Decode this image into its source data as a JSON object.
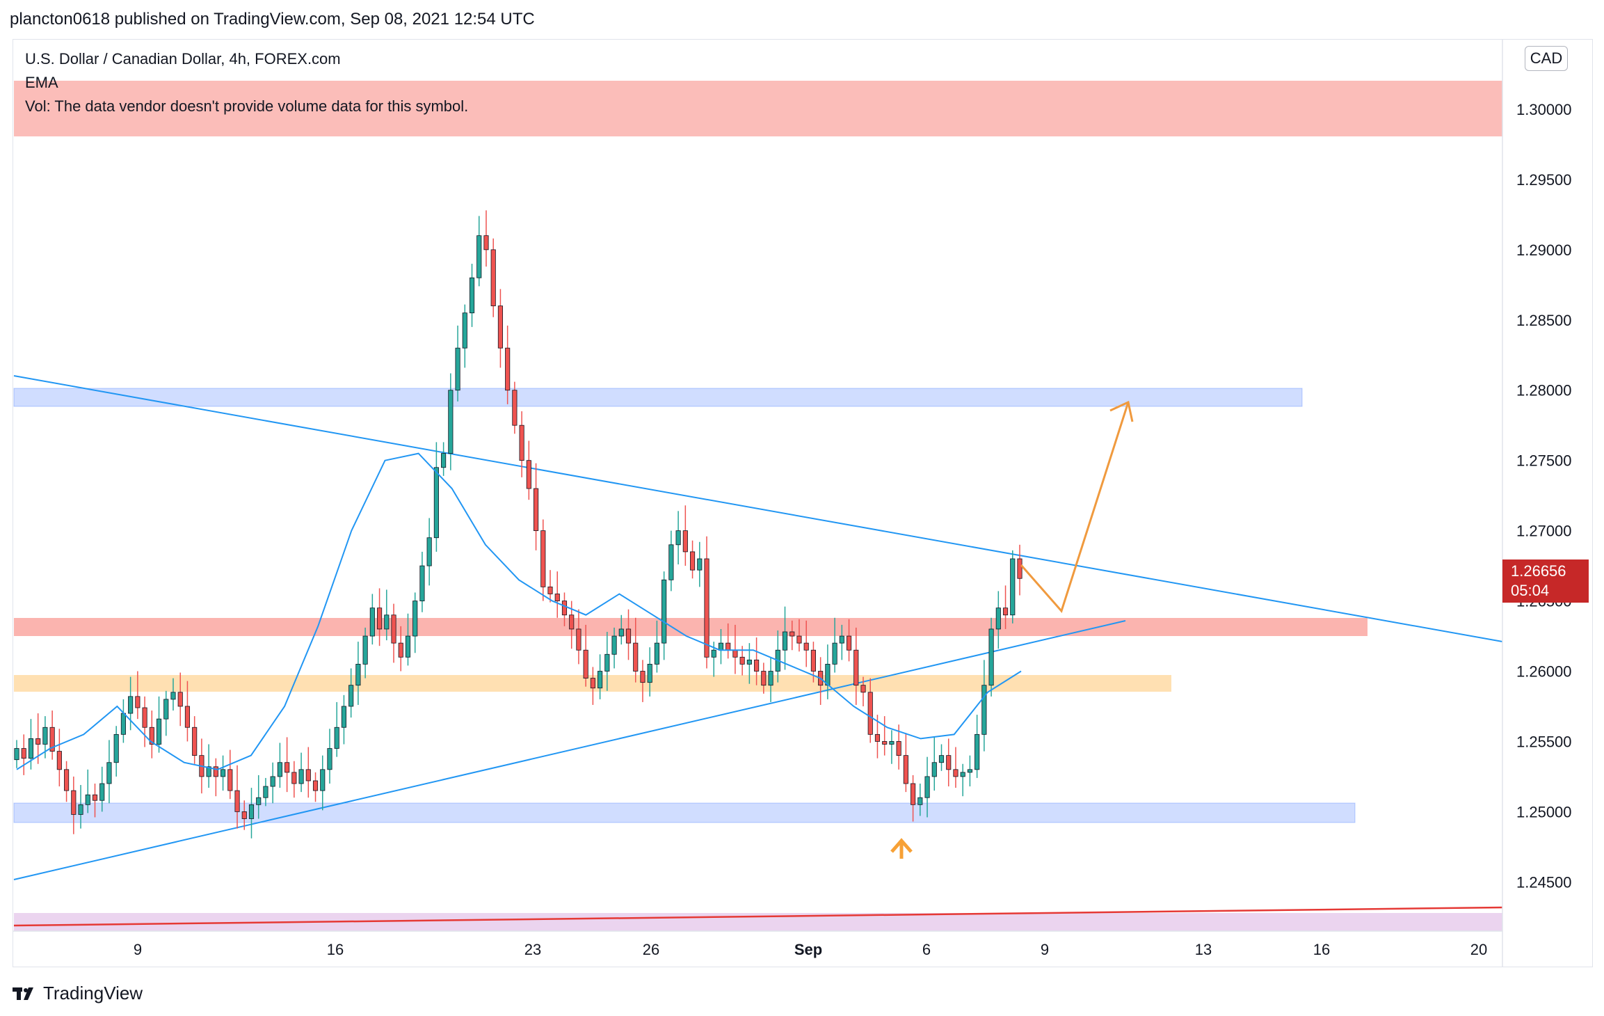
{
  "header": {
    "publisher": "plancton0618 published on TradingView.com, Sep 08, 2021 12:54 UTC"
  },
  "legend": {
    "symbol": "U.S. Dollar / Canadian Dollar, 4h, FOREX.com",
    "ema": "EMA",
    "volume_notice": "Vol: The data vendor doesn't provide volume data for this symbol."
  },
  "currency_badge": "CAD",
  "price_badge": {
    "price": "1.26656",
    "countdown": "05:04"
  },
  "footer": {
    "brand": "TradingView"
  },
  "colors": {
    "up_candle": "#26a69a",
    "down_candle": "#ef5350",
    "ema_line": "#2196f3",
    "trendline": "#2196f3",
    "arrow": "#f7a136",
    "price_badge": "#c62828"
  },
  "chart_data": {
    "type": "candlestick",
    "title": "U.S. Dollar / Canadian Dollar, 4h, FOREX.com",
    "ylim": [
      1.2415,
      1.305
    ],
    "y_ticks": [
      "1.30000",
      "1.29500",
      "1.29000",
      "1.28500",
      "1.28000",
      "1.27500",
      "1.27000",
      "1.26500",
      "1.26000",
      "1.25500",
      "1.25000",
      "1.24500"
    ],
    "x_ticks": [
      "9",
      "16",
      "23",
      "26",
      "Sep",
      "6",
      "9",
      "13",
      "16",
      "20"
    ],
    "grid": false,
    "last_price": 1.26656,
    "close_series": [
      1.2545,
      1.2538,
      1.2552,
      1.2548,
      1.256,
      1.2543,
      1.253,
      1.2515,
      1.2498,
      1.2505,
      1.2512,
      1.2508,
      1.252,
      1.2535,
      1.2555,
      1.257,
      1.2582,
      1.2574,
      1.256,
      1.2548,
      1.2566,
      1.258,
      1.2585,
      1.2575,
      1.256,
      1.254,
      1.2525,
      1.2532,
      1.2525,
      1.253,
      1.2515,
      1.25,
      1.2495,
      1.2505,
      1.251,
      1.2518,
      1.2525,
      1.2535,
      1.2528,
      1.252,
      1.253,
      1.2522,
      1.2515,
      1.253,
      1.2545,
      1.256,
      1.2575,
      1.259,
      1.2605,
      1.2625,
      1.2645,
      1.263,
      1.264,
      1.262,
      1.261,
      1.2625,
      1.265,
      1.2675,
      1.2695,
      1.2745,
      1.2755,
      1.28,
      1.283,
      1.2855,
      1.288,
      1.291,
      1.29,
      1.286,
      1.283,
      1.28,
      1.2775,
      1.275,
      1.273,
      1.27,
      1.266,
      1.2655,
      1.265,
      1.264,
      1.263,
      1.2615,
      1.2595,
      1.2588,
      1.26,
      1.2612,
      1.2625,
      1.263,
      1.262,
      1.26,
      1.2592,
      1.2605,
      1.262,
      1.2665,
      1.269,
      1.27,
      1.2685,
      1.2672,
      1.268,
      1.261,
      1.2615,
      1.262,
      1.2615,
      1.261,
      1.2605,
      1.2608,
      1.26,
      1.259,
      1.26,
      1.2615,
      1.2628,
      1.2625,
      1.262,
      1.2615,
      1.26,
      1.259,
      1.2605,
      1.262,
      1.2625,
      1.2615,
      1.259,
      1.2585,
      1.2555,
      1.255,
      1.2548,
      1.255,
      1.254,
      1.252,
      1.2505,
      1.251,
      1.2525,
      1.2535,
      1.254,
      1.253,
      1.2525,
      1.2528,
      1.253,
      1.2555,
      1.259,
      1.263,
      1.2645,
      1.264,
      1.268,
      1.2666
    ],
    "ema_values": [
      1.253,
      1.2545,
      1.2555,
      1.2575,
      1.255,
      1.2535,
      1.253,
      1.254,
      1.2575,
      1.2632,
      1.27,
      1.275,
      1.2755,
      1.273,
      1.269,
      1.2665,
      1.265,
      1.264,
      1.2655,
      1.264,
      1.2625,
      1.2615,
      1.2615,
      1.2605,
      1.2595,
      1.2575,
      1.256,
      1.2552,
      1.2555,
      1.2585,
      1.26
    ]
  }
}
